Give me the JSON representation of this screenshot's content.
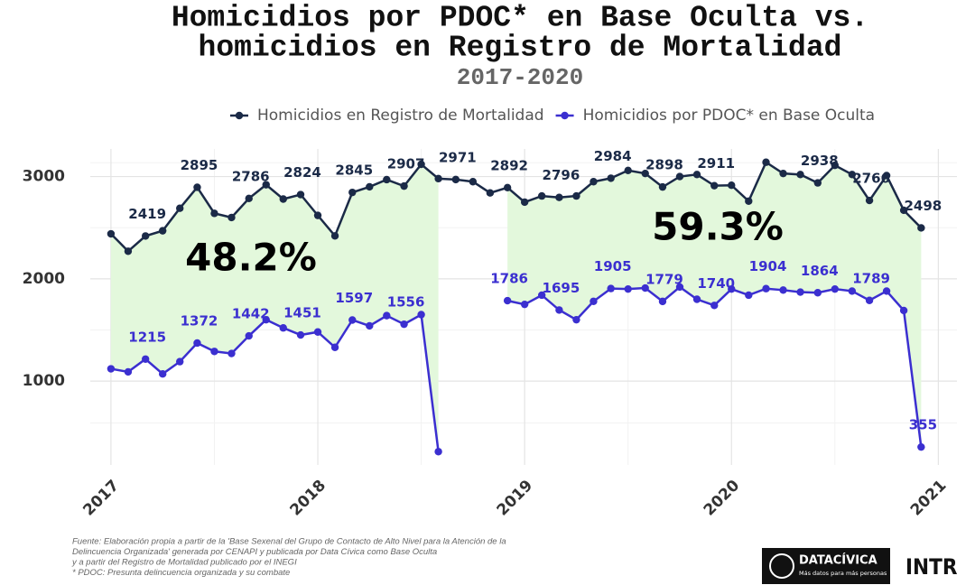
{
  "chart_data": {
    "type": "line",
    "title": [
      "Homicidios por PDOC* en Base Oculta vs.",
      "homicidios en Registro de Mortalidad"
    ],
    "subtitle": "2017-2020",
    "x": [
      2017,
      2017.083,
      2017.167,
      2017.25,
      2017.333,
      2017.417,
      2017.5,
      2017.583,
      2017.667,
      2017.75,
      2017.833,
      2017.917,
      2018,
      2018.083,
      2018.167,
      2018.25,
      2018.333,
      2018.417,
      2018.5,
      2018.583,
      2018.667,
      2018.75,
      2018.833,
      2018.917,
      2019,
      2019.083,
      2019.167,
      2019.25,
      2019.333,
      2019.417,
      2019.5,
      2019.583,
      2019.667,
      2019.75,
      2019.833,
      2019.917,
      2020,
      2020.083,
      2020.167,
      2020.25,
      2020.333,
      2020.417,
      2020.5,
      2020.583,
      2020.667,
      2020.75,
      2020.833,
      2020.917
    ],
    "series": [
      {
        "name": "Homicidios en Registro de Mortalidad",
        "color": "#1b2a47",
        "values": [
          2440,
          2270,
          2419,
          2470,
          2690,
          2895,
          2640,
          2600,
          2786,
          2920,
          2780,
          2824,
          2620,
          2420,
          2845,
          2900,
          2970,
          2907,
          3120,
          2980,
          2971,
          2950,
          2840,
          2892,
          2750,
          2810,
          2796,
          2810,
          2950,
          2984,
          3060,
          3030,
          2898,
          3000,
          3020,
          2911,
          2915,
          2760,
          3140,
          3030,
          3020,
          2938,
          3110,
          3020,
          2766,
          3010,
          2670,
          2498
        ],
        "value_labels": [
          null,
          null,
          "2419",
          null,
          null,
          "2895",
          null,
          null,
          "2786",
          null,
          null,
          "2824",
          null,
          null,
          "2845",
          null,
          null,
          "2907",
          null,
          null,
          "2971",
          null,
          null,
          "2892",
          null,
          null,
          "2796",
          null,
          null,
          "2984",
          null,
          null,
          "2898",
          null,
          null,
          "2911",
          null,
          null,
          null,
          null,
          null,
          "2938",
          null,
          null,
          "2766",
          null,
          null,
          "2498"
        ]
      },
      {
        "name": "Homicidios por PDOC* en Base Oculta",
        "color": "#3b2fd0",
        "values": [
          1120,
          1090,
          1215,
          1070,
          1190,
          1372,
          1290,
          1270,
          1442,
          1600,
          1520,
          1451,
          1480,
          1330,
          1597,
          1540,
          1640,
          1556,
          1650,
          310,
          null,
          null,
          null,
          1786,
          1750,
          1840,
          1695,
          1600,
          1780,
          1905,
          1900,
          1910,
          1779,
          1920,
          1800,
          1740,
          1900,
          1840,
          1904,
          1890,
          1870,
          1864,
          1900,
          1880,
          1789,
          1880,
          1690,
          355
        ],
        "value_labels": [
          null,
          null,
          "1215",
          null,
          null,
          "1372",
          null,
          null,
          "1442",
          null,
          null,
          "1451",
          null,
          null,
          "1597",
          null,
          null,
          "1556",
          null,
          null,
          null,
          null,
          null,
          "1786",
          null,
          null,
          "1695",
          null,
          null,
          "1905",
          null,
          null,
          "1779",
          null,
          null,
          "1740",
          null,
          null,
          "1904",
          null,
          null,
          "1864",
          null,
          null,
          "1789",
          null,
          null,
          "355"
        ]
      }
    ],
    "annotations": [
      "48.2%",
      "59.3%"
    ],
    "xlim": [
      2016.9,
      2021.09
    ],
    "xticks": [
      2017,
      2018,
      2019,
      2020,
      2021
    ],
    "ylim": [
      180,
      3270
    ],
    "yticks": [
      1000,
      2000,
      3000
    ],
    "grid": true,
    "shade_color": "#e3f8dc",
    "source": [
      "Fuente: Elaboración propia a partir de la 'Base Sexenal del Grupo de Contacto de Alto Nivel para la Atención de la",
      "Delincuencia Organizada' generada por CENAPI y publicada por Data Cívica como Base Oculta",
      "y a partir del Registro de Mortalidad publicado por el INEGI",
      "* PDOC: Presunta delincuencia organizada y su combate"
    ],
    "logos": {
      "brand": "DATACÍVICA",
      "tagline": "Más datos para más personas",
      "partner": "INTR"
    }
  }
}
